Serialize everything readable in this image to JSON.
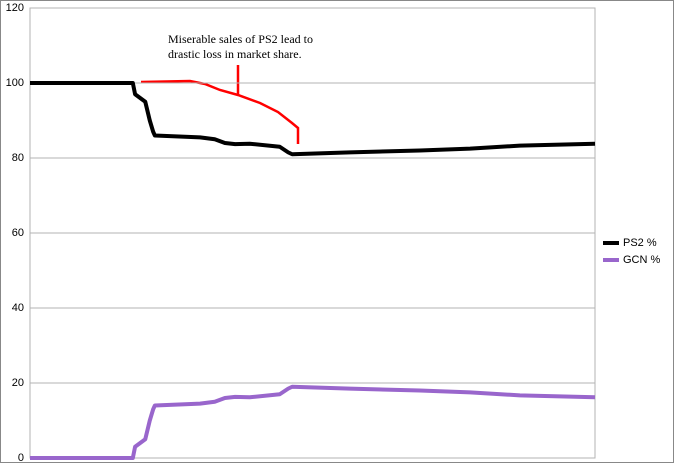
{
  "chart_data": {
    "type": "line",
    "annotation": [
      "Miserable sales of PS2 lead to",
      "drastic loss in market share."
    ],
    "x": [
      0,
      18.2,
      18.6,
      20.4,
      21.2,
      21.8,
      22.1,
      30.1,
      32.7,
      34.5,
      36.3,
      38.9,
      44.2,
      45.7,
      46.4,
      56.6,
      69.0,
      77.9,
      86.7,
      100
    ],
    "xlim": [
      0,
      100
    ],
    "series": [
      {
        "name": "PS2 %",
        "color": "#000000",
        "values": [
          100,
          100,
          97,
          95,
          90,
          87,
          86,
          85.5,
          85,
          84,
          83.7,
          83.8,
          83,
          81.5,
          81,
          81.5,
          82,
          82.5,
          83.3,
          83.8
        ]
      },
      {
        "name": "GCN %",
        "color": "#9966cc",
        "values": [
          0,
          0,
          3,
          5,
          10,
          13,
          14,
          14.5,
          15,
          16,
          16.3,
          16.2,
          17,
          18.5,
          19,
          18.5,
          18,
          17.5,
          16.7,
          16.2
        ]
      }
    ],
    "ylim": [
      0,
      120
    ],
    "yticks": [
      0,
      20,
      40,
      60,
      80,
      100,
      120
    ],
    "grid": true,
    "legend": "right"
  }
}
